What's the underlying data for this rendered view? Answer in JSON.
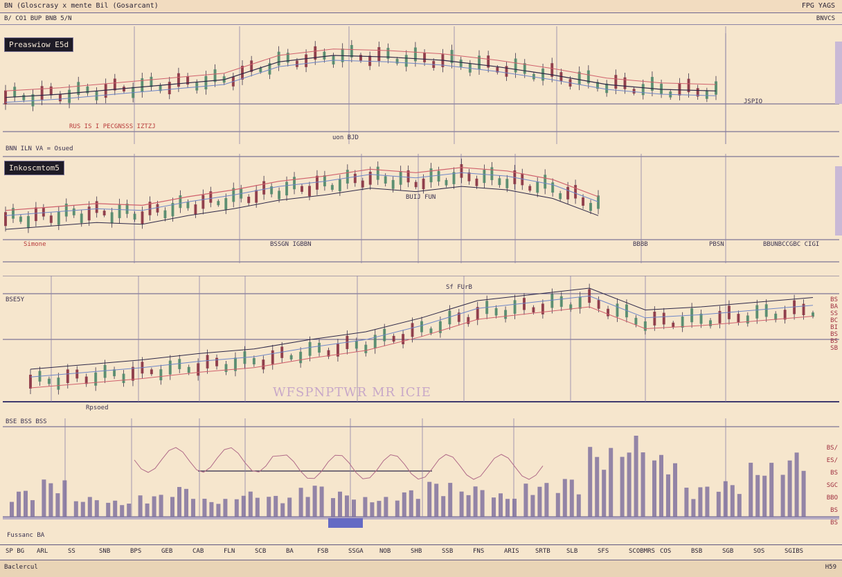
{
  "window": {
    "title": "BN (Gloscrasy  x mente Bil (Gosarcant)",
    "corner": "FPG YAGS"
  },
  "subbar": {
    "left": "B/ CO1 BUP BNB 5/N",
    "right": "BNVCS"
  },
  "panels": [
    {
      "id": "p1",
      "tag": "Preaswiow E5d",
      "mid_label": "uon BJD",
      "price_label": "JSPIO",
      "footer_left": "BNN ILN VA = Osued",
      "footer_small": "RUS IS I PECGNSSS IZTZJ"
    },
    {
      "id": "p2",
      "tag": "Inkoscmtom5",
      "footer_left": "Simone",
      "footer_mid": "BSSGN   IGBBN",
      "footer_r1": "BBBB",
      "footer_r2": "PBSN",
      "footer_right": "BBUNBCCGBC CIGI",
      "annotation": "BUIJ FUN"
    },
    {
      "id": "p3",
      "tag": "BSE5Y",
      "overlay_text": "WFSPNPTWR MR ICIE",
      "footer_left": "Rpsoed",
      "peak_label": "Sf FUrB",
      "scale": [
        "BS",
        "BA",
        "SS",
        "BC",
        "BI",
        "BS",
        "BS",
        "SB"
      ]
    },
    {
      "id": "p4",
      "tag": "BSE BSS BSS",
      "bottom_left": "Fussanc BA",
      "scale": [
        "BS/",
        "ES/",
        "BS",
        "SGC",
        "BBO",
        "BS",
        "BS"
      ]
    }
  ],
  "x_axis_labels": [
    "SP BG",
    "ARL",
    "SS",
    "SNB",
    "BPS",
    "GEB",
    "CAB",
    "FLN",
    "SCB",
    "BA",
    "FSB",
    "SSGA",
    "NOB",
    "SHB",
    "SSB",
    "FNS",
    "ARIS",
    "SRTB",
    "SLB",
    "SFS",
    "SCOBMRS",
    "COS",
    "BSB",
    "SGB",
    "SOS",
    "SGIBS"
  ],
  "status": {
    "left": "Baclercul",
    "right": "H59"
  },
  "colors": {
    "bg": "#f6e6cd",
    "up": "#4d8a6a",
    "down": "#8a2e3e",
    "line_red": "#d0606c",
    "line_blue": "#6e86c8",
    "line_dark": "#2e2848",
    "volume": "#7a6c9c"
  },
  "chart_data": [
    {
      "type": "line",
      "panel": "p1",
      "series": [
        {
          "values": [
            36,
            38,
            41,
            44,
            47,
            58,
            62,
            61,
            59,
            55,
            50,
            44,
            41,
            40
          ]
        }
      ]
    },
    {
      "type": "line",
      "panel": "p2",
      "series": [
        {
          "values": [
            22,
            24,
            26,
            25,
            30,
            34,
            39,
            42,
            46,
            44,
            47,
            45,
            40,
            30
          ]
        }
      ]
    },
    {
      "type": "line",
      "panel": "p3",
      "series": [
        {
          "values": [
            12,
            15,
            18,
            22,
            25,
            31,
            36,
            45,
            56,
            60,
            64,
            50,
            52,
            55,
            58
          ]
        }
      ]
    },
    {
      "type": "bar",
      "panel": "p4",
      "values": [
        30,
        42,
        22,
        18,
        25,
        34,
        20,
        28,
        24,
        36,
        28,
        22,
        30,
        40,
        34,
        26,
        38,
        44,
        78,
        90,
        70,
        35,
        40,
        60,
        72
      ]
    }
  ]
}
